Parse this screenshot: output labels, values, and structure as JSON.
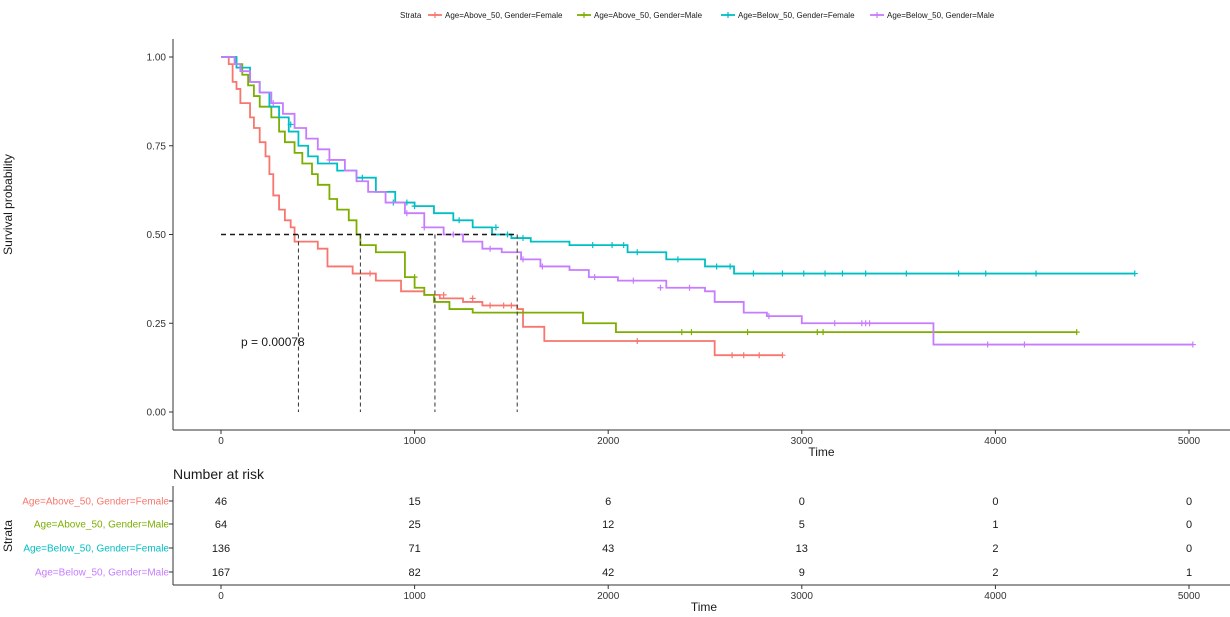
{
  "legend": {
    "title": "Strata"
  },
  "chart_data": [
    {
      "type": "line",
      "subtype": "kaplan-meier-step",
      "xlabel": "Time",
      "ylabel": "Survival probability",
      "xlim": [
        0,
        5000
      ],
      "ylim": [
        0,
        1
      ],
      "x_ticks": [
        "0",
        "1000",
        "2000",
        "3000",
        "4000",
        "5000"
      ],
      "y_ticks": [
        "0.00",
        "0.25",
        "0.50",
        "0.75",
        "1.00"
      ],
      "grid": false,
      "legend_position": "top",
      "annotation": "p = 0.00078",
      "median_reference": {
        "y": 0.5,
        "x": [
          400,
          720,
          1105,
          1530
        ]
      },
      "series": [
        {
          "name": "Age=Above_50, Gender=Female",
          "color": "#F8766D",
          "x": [
            0,
            40,
            60,
            80,
            100,
            150,
            170,
            200,
            230,
            250,
            270,
            300,
            330,
            360,
            380,
            400,
            500,
            550,
            680,
            800,
            930,
            1050,
            1130,
            1250,
            1350,
            1530,
            1560,
            1670,
            2550,
            2600,
            2900
          ],
          "y": [
            1.0,
            0.98,
            0.93,
            0.91,
            0.87,
            0.83,
            0.8,
            0.76,
            0.72,
            0.67,
            0.61,
            0.57,
            0.54,
            0.52,
            0.48,
            0.48,
            0.46,
            0.41,
            0.39,
            0.37,
            0.34,
            0.33,
            0.32,
            0.31,
            0.3,
            0.29,
            0.24,
            0.2,
            0.16,
            0.16,
            0.16
          ],
          "censor_x": [
            770,
            1150,
            1300,
            1390,
            1460,
            1500,
            2150,
            2640,
            2700,
            2780,
            2900
          ],
          "censor_y": [
            0.39,
            0.33,
            0.32,
            0.3,
            0.3,
            0.3,
            0.2,
            0.16,
            0.16,
            0.16,
            0.16
          ]
        },
        {
          "name": "Age=Above_50, Gender=Male",
          "color": "#7CAE00",
          "x": [
            0,
            80,
            110,
            140,
            170,
            200,
            260,
            300,
            330,
            380,
            420,
            470,
            500,
            560,
            600,
            660,
            700,
            720,
            800,
            950,
            1000,
            1050,
            1100,
            1180,
            1300,
            1870,
            2040,
            2200,
            4420
          ],
          "y": [
            1.0,
            0.98,
            0.95,
            0.92,
            0.89,
            0.86,
            0.83,
            0.79,
            0.76,
            0.73,
            0.7,
            0.67,
            0.64,
            0.6,
            0.57,
            0.54,
            0.5,
            0.47,
            0.45,
            0.38,
            0.35,
            0.33,
            0.31,
            0.29,
            0.28,
            0.25,
            0.225,
            0.225,
            0.225
          ],
          "censor_x": [
            1000,
            2380,
            2430,
            2720,
            3080,
            3110,
            4420
          ],
          "censor_y": [
            0.38,
            0.225,
            0.225,
            0.225,
            0.225,
            0.225,
            0.225
          ]
        },
        {
          "name": "Age=Below_50, Gender=Female",
          "color": "#00BFC4",
          "x": [
            0,
            80,
            150,
            200,
            250,
            300,
            350,
            400,
            450,
            500,
            600,
            700,
            800,
            900,
            1000,
            1100,
            1200,
            1300,
            1400,
            1500,
            1600,
            1800,
            2100,
            2300,
            2500,
            2650,
            4720
          ],
          "y": [
            1.0,
            0.97,
            0.93,
            0.9,
            0.86,
            0.83,
            0.79,
            0.75,
            0.72,
            0.7,
            0.68,
            0.66,
            0.62,
            0.59,
            0.58,
            0.56,
            0.54,
            0.52,
            0.5,
            0.49,
            0.48,
            0.47,
            0.45,
            0.43,
            0.41,
            0.39,
            0.39
          ],
          "censor_x": [
            360,
            730,
            890,
            960,
            1000,
            1230,
            1420,
            1480,
            1560,
            1920,
            2020,
            2080,
            2150,
            2360,
            2560,
            2630,
            2750,
            2900,
            3010,
            3120,
            3210,
            3330,
            3540,
            3810,
            3950,
            4210,
            4720
          ],
          "censor_y": [
            0.81,
            0.66,
            0.59,
            0.59,
            0.58,
            0.54,
            0.52,
            0.5,
            0.49,
            0.47,
            0.47,
            0.47,
            0.45,
            0.43,
            0.41,
            0.41,
            0.39,
            0.39,
            0.39,
            0.39,
            0.39,
            0.39,
            0.39,
            0.39,
            0.39,
            0.39,
            0.39
          ]
        },
        {
          "name": "Age=Below_50, Gender=Male",
          "color": "#C77CFF",
          "x": [
            0,
            70,
            100,
            150,
            200,
            260,
            320,
            380,
            440,
            500,
            560,
            640,
            700,
            760,
            850,
            950,
            1050,
            1150,
            1250,
            1350,
            1450,
            1550,
            1650,
            1800,
            1900,
            2050,
            2300,
            2500,
            2550,
            2700,
            2820,
            3000,
            3680,
            5020
          ],
          "y": [
            1.0,
            0.98,
            0.96,
            0.93,
            0.9,
            0.87,
            0.84,
            0.8,
            0.77,
            0.74,
            0.71,
            0.68,
            0.65,
            0.62,
            0.59,
            0.56,
            0.52,
            0.5,
            0.48,
            0.46,
            0.45,
            0.43,
            0.41,
            0.4,
            0.38,
            0.37,
            0.35,
            0.34,
            0.31,
            0.28,
            0.27,
            0.25,
            0.19,
            0.19
          ],
          "censor_x": [
            270,
            560,
            960,
            1050,
            1200,
            1390,
            1560,
            1660,
            1930,
            2130,
            2270,
            2420,
            2830,
            3170,
            3310,
            3330,
            3350,
            3960,
            4150,
            5020
          ],
          "censor_y": [
            0.87,
            0.71,
            0.56,
            0.52,
            0.5,
            0.46,
            0.43,
            0.41,
            0.38,
            0.37,
            0.35,
            0.35,
            0.27,
            0.25,
            0.25,
            0.25,
            0.25,
            0.19,
            0.19,
            0.19
          ]
        }
      ]
    },
    {
      "type": "table",
      "title": "Number at risk",
      "ylabel": "Strata",
      "xlabel": "Time",
      "x_ticks": [
        "0",
        "1000",
        "2000",
        "3000",
        "4000",
        "5000"
      ],
      "rows": [
        {
          "label": "Age=Above_50, Gender=Female",
          "color": "#F8766D",
          "values": [
            "46",
            "15",
            "6",
            "0",
            "0",
            "0"
          ]
        },
        {
          "label": "Age=Above_50, Gender=Male",
          "color": "#7CAE00",
          "values": [
            "64",
            "25",
            "12",
            "5",
            "1",
            "0"
          ]
        },
        {
          "label": "Age=Below_50, Gender=Female",
          "color": "#00BFC4",
          "values": [
            "136",
            "71",
            "43",
            "13",
            "2",
            "0"
          ]
        },
        {
          "label": "Age=Below_50, Gender=Male",
          "color": "#C77CFF",
          "values": [
            "167",
            "82",
            "42",
            "9",
            "2",
            "1"
          ]
        }
      ]
    }
  ]
}
